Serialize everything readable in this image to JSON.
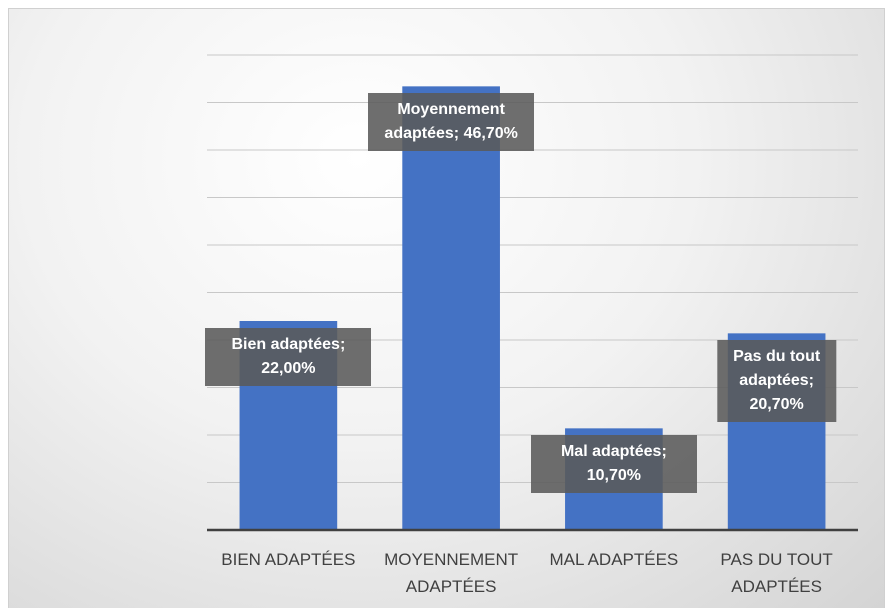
{
  "chart_data": {
    "type": "bar",
    "categories": [
      "BIEN ADAPTÉES",
      "MOYENNEMENT ADAPTÉES",
      "MAL ADAPTÉES",
      "PAS DU TOUT ADAPTÉES"
    ],
    "values": [
      22.0,
      46.7,
      10.7,
      20.7
    ],
    "value_labels": [
      "Bien adaptées; 22,00%",
      "Moyennement adaptées; 46,70%",
      "Mal adaptées; 10,70%",
      "Pas du tout adaptées; 20,70%"
    ],
    "color": "#4472c4",
    "ylim": [
      0,
      50
    ],
    "yticks": [
      0,
      5,
      10,
      15,
      20,
      25,
      30,
      35,
      40,
      45,
      50
    ],
    "grid": true
  }
}
